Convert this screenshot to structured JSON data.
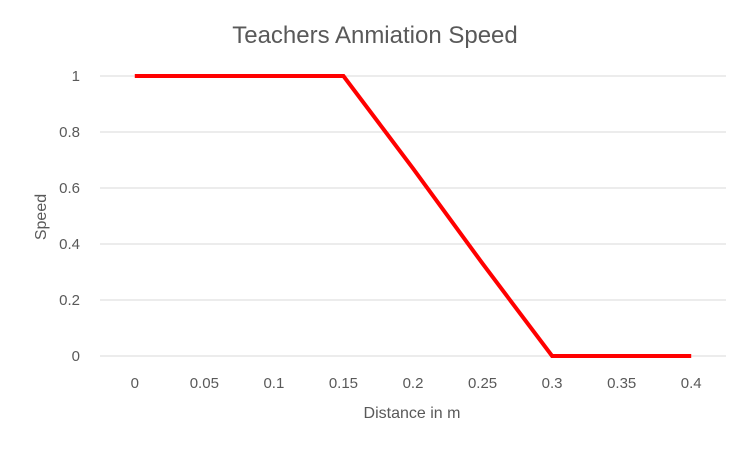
{
  "chart_data": {
    "type": "line",
    "title": "Teachers Anmiation Speed",
    "xlabel": "Distance in m",
    "ylabel": "Speed",
    "x": [
      0,
      0.05,
      0.1,
      0.15,
      0.2,
      0.25,
      0.3,
      0.35,
      0.4
    ],
    "x_tick_labels": [
      "0",
      "0.05",
      "0.1",
      "0.15",
      "0.2",
      "0.25",
      "0.3",
      "0.35",
      "0.4"
    ],
    "y_tick_labels": [
      "0",
      "0.2",
      "0.4",
      "0.6",
      "0.8",
      "1"
    ],
    "y_ticks": [
      0,
      0.2,
      0.4,
      0.6,
      0.8,
      1
    ],
    "ylim": [
      0,
      1
    ],
    "grid": true,
    "legend": "none",
    "series": [
      {
        "values": [
          1,
          1,
          1,
          1,
          0.67,
          0.33,
          0,
          0,
          0
        ],
        "color": "#ff0000"
      }
    ]
  }
}
